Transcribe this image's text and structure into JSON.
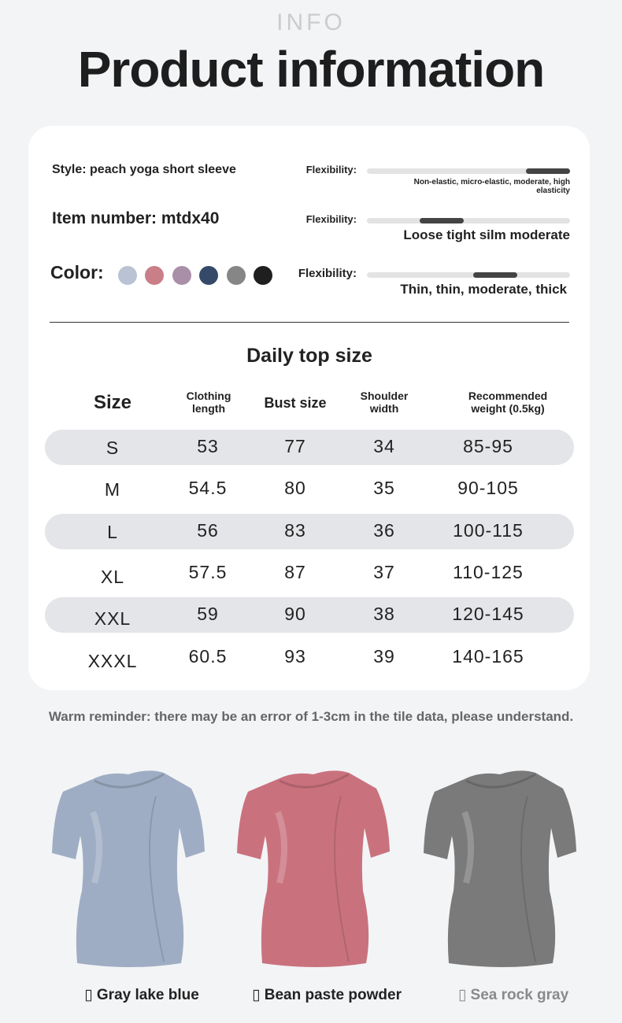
{
  "header": {
    "watermark": "INFO",
    "title": "Product information"
  },
  "info": {
    "style": "Style: peach yoga short sleeve",
    "item_number": "Item number: mtdx40",
    "color_label": "Color:",
    "swatches": [
      "#b9c3d4",
      "#c97e88",
      "#aa8fa9",
      "#354a68",
      "#868686",
      "#1f1f1f"
    ],
    "scales": [
      {
        "label": "Flexibility:",
        "level": 0.89,
        "description": "Non-elastic, micro-elastic, moderate, high elasticity"
      },
      {
        "label": "Flexibility:",
        "level": 0.37,
        "description": "Loose tight silm moderate"
      },
      {
        "label": "Flexibility:",
        "level": 0.63,
        "description": "Thin, thin, moderate, thick"
      }
    ]
  },
  "size_table": {
    "title": "Daily top size",
    "headers": [
      "Size",
      "Clothing length",
      "Bust size",
      "Shoulder width",
      "Recommended weight (0.5kg)"
    ],
    "rows": [
      [
        "S",
        "53",
        "77",
        "34",
        "85-95"
      ],
      [
        "M",
        "54.5",
        "80",
        "35",
        "90-105"
      ],
      [
        "L",
        "56",
        "83",
        "36",
        "100-115"
      ],
      [
        "XL",
        "57.5",
        "87",
        "37",
        "110-125"
      ],
      [
        "XXL",
        "59",
        "90",
        "38",
        "120-145"
      ],
      [
        "XXXL",
        "60.5",
        "93",
        "39",
        "140-165"
      ]
    ]
  },
  "reminder": "Warm reminder: there may be an error of 1-3cm in the tile data, please understand.",
  "products": [
    {
      "caption": "▯ Gray lake blue",
      "color": "#9fadc4"
    },
    {
      "caption": "▯ Bean paste powder",
      "color": "#c9727e"
    },
    {
      "caption": "▯ Sea rock gray",
      "color": "#7a7a7a"
    }
  ]
}
